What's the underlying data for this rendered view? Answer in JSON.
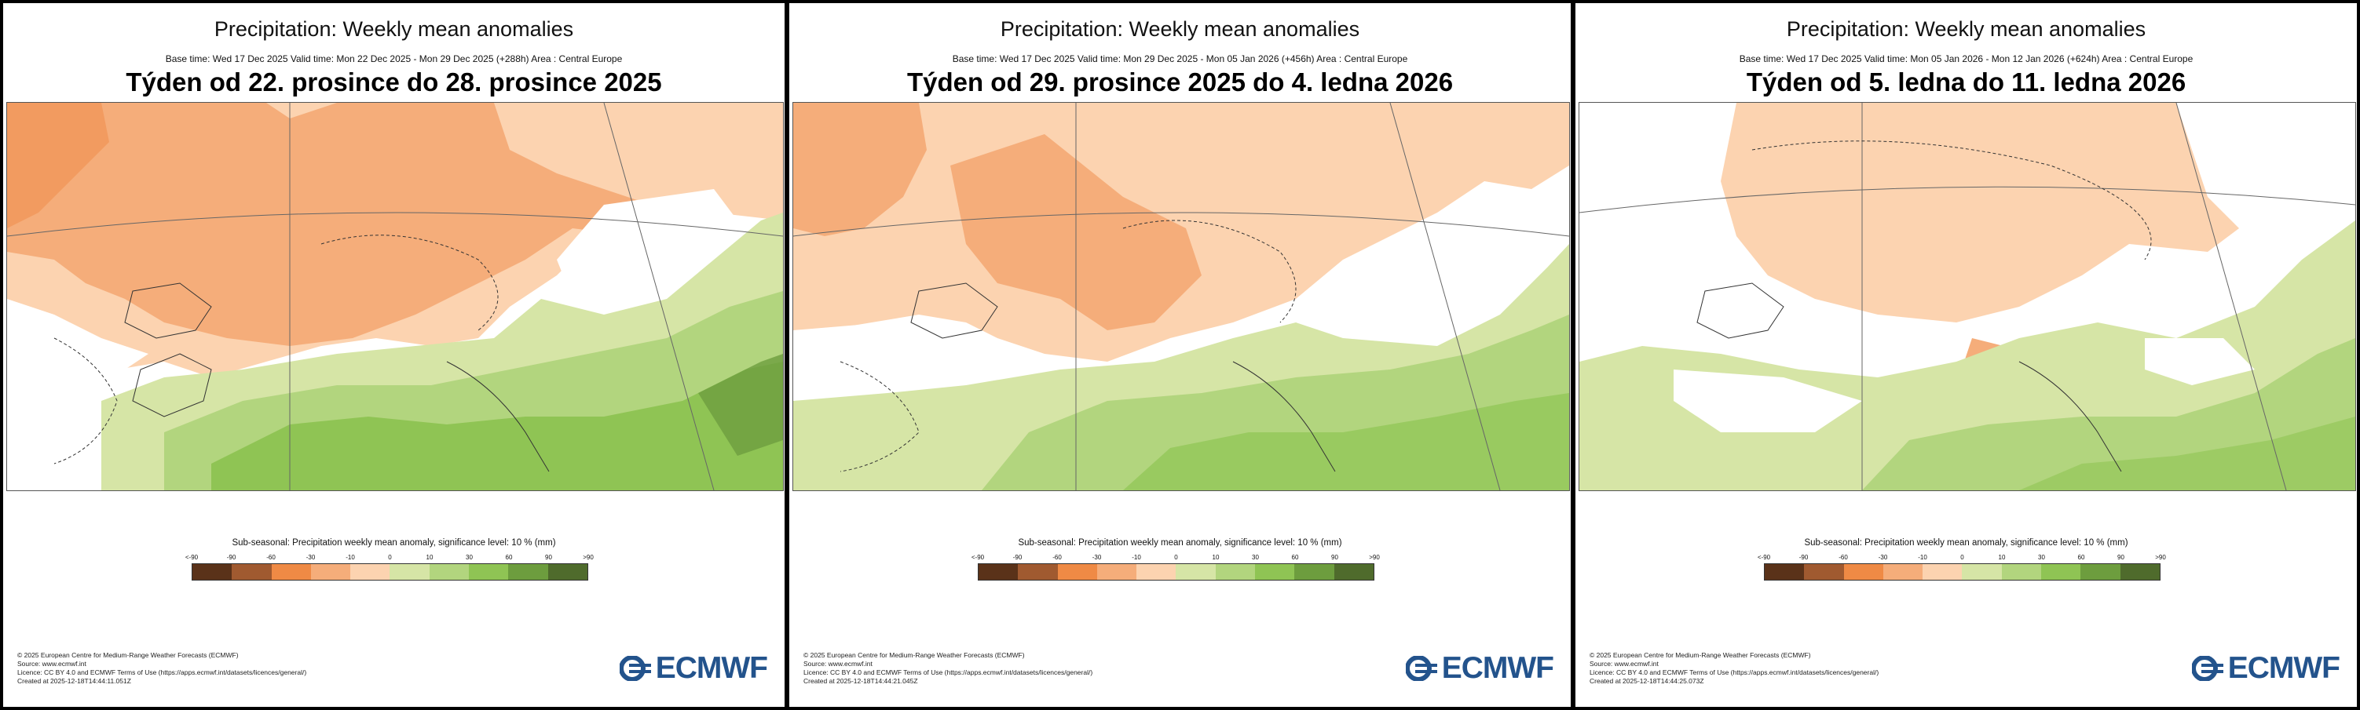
{
  "legend_colors": [
    "#5a3219",
    "#a05a30",
    "#ef8a45",
    "#f5ad7a",
    "#fcd3b0",
    "#d6e5a6",
    "#b2d57e",
    "#8fc454",
    "#6d9d3e",
    "#4f6b2c"
  ],
  "legend_ticks": [
    "<-90",
    "-90",
    "-60",
    "-30",
    "-10",
    "0",
    "10",
    "30",
    "60",
    "90",
    ">90"
  ],
  "panels": [
    {
      "title": "Precipitation: Weekly mean anomalies",
      "base_time": "Base time: Wed 17 Dec 2025 Valid time: Mon 22 Dec 2025 - Mon 29 Dec 2025 (+288h) Area : Central Europe",
      "week_title": "Týden od 22. prosince do 28. prosince 2025",
      "legend_title": "Sub-seasonal: Precipitation weekly mean anomaly, significance level: 10 % (mm)",
      "credits": [
        "© 2025 European Centre for Medium-Range Weather Forecasts (ECMWF)",
        "Source: www.ecmwf.int",
        "Licence: CC BY 4.0 and ECMWF Terms of Use (https://apps.ecmwf.int/datasets/licences/general/)",
        "Created at 2025-12-18T14:44:11.051Z"
      ],
      "logo_text": "ECMWF"
    },
    {
      "title": "Precipitation: Weekly mean anomalies",
      "base_time": "Base time: Wed 17 Dec 2025 Valid time: Mon 29 Dec 2025 - Mon 05 Jan 2026 (+456h) Area : Central Europe",
      "week_title": "Týden od 29. prosince 2025 do 4. ledna 2026",
      "legend_title": "Sub-seasonal: Precipitation weekly mean anomaly, significance level: 10 % (mm)",
      "credits": [
        "© 2025 European Centre for Medium-Range Weather Forecasts (ECMWF)",
        "Source: www.ecmwf.int",
        "Licence: CC BY 4.0 and ECMWF Terms of Use (https://apps.ecmwf.int/datasets/licences/general/)",
        "Created at 2025-12-18T14:44:21.045Z"
      ],
      "logo_text": "ECMWF"
    },
    {
      "title": "Precipitation: Weekly mean anomalies",
      "base_time": "Base time: Wed 17 Dec 2025 Valid time: Mon 05 Jan 2026 - Mon 12 Jan 2026 (+624h) Area : Central Europe",
      "week_title": "Týden od 5. ledna do 11. ledna 2026",
      "legend_title": "Sub-seasonal: Precipitation weekly mean anomaly, significance level: 10 % (mm)",
      "credits": [
        "© 2025 European Centre for Medium-Range Weather Forecasts (ECMWF)",
        "Source: www.ecmwf.int",
        "Licence: CC BY 4.0 and ECMWF Terms of Use (https://apps.ecmwf.int/datasets/licences/general/)",
        "Created at 2025-12-18T14:44:25.073Z"
      ],
      "logo_text": "ECMWF"
    }
  ]
}
